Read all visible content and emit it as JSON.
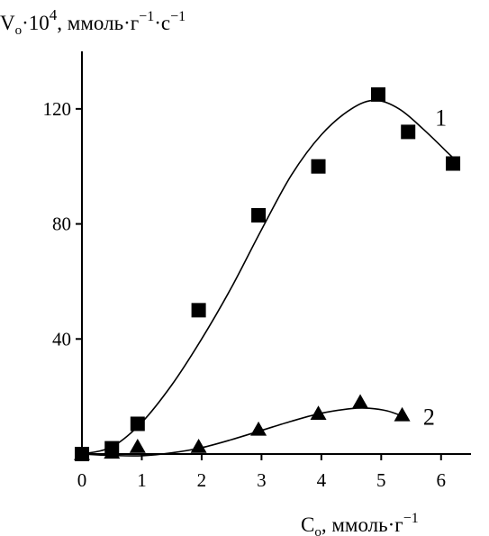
{
  "chart_data": {
    "type": "scatter",
    "ylabel": {
      "base": "V",
      "sub": "o",
      "mid": "·10",
      "exp": "4",
      "unit_a": ", ммоль·г",
      "unit_exp1": "−1",
      "unit_b": "·с",
      "unit_exp2": "−1"
    },
    "xlabel": {
      "base": "C",
      "sub": "o",
      "unit": ", ммоль·г",
      "unit_exp": "−1"
    },
    "xlim": [
      0,
      6.5
    ],
    "ylim": [
      0,
      140
    ],
    "x_ticks": [
      0,
      1,
      2,
      3,
      4,
      5,
      6
    ],
    "y_ticks": [
      40,
      80,
      120
    ],
    "x_tick_labels": [
      "0",
      "1",
      "2",
      "3",
      "4",
      "5",
      "6"
    ],
    "y_tick_labels": [
      "40",
      "80",
      "120"
    ],
    "grid": false,
    "series": [
      {
        "name": "1",
        "marker": "square",
        "points": [
          {
            "x": 0,
            "y": 0
          },
          {
            "x": 0.5,
            "y": 2
          },
          {
            "x": 0.93,
            "y": 10.5
          },
          {
            "x": 1.95,
            "y": 50
          },
          {
            "x": 2.95,
            "y": 83
          },
          {
            "x": 3.95,
            "y": 100
          },
          {
            "x": 4.95,
            "y": 125
          },
          {
            "x": 5.45,
            "y": 112
          },
          {
            "x": 6.2,
            "y": 101
          }
        ],
        "fit_curve": [
          {
            "x": 0,
            "y": 0
          },
          {
            "x": 0.5,
            "y": 2.5
          },
          {
            "x": 1.0,
            "y": 11
          },
          {
            "x": 1.5,
            "y": 24
          },
          {
            "x": 2.0,
            "y": 40
          },
          {
            "x": 2.5,
            "y": 58
          },
          {
            "x": 3.0,
            "y": 78
          },
          {
            "x": 3.5,
            "y": 97
          },
          {
            "x": 4.0,
            "y": 111
          },
          {
            "x": 4.5,
            "y": 120
          },
          {
            "x": 4.9,
            "y": 123
          },
          {
            "x": 5.3,
            "y": 120
          },
          {
            "x": 5.7,
            "y": 113
          },
          {
            "x": 6.1,
            "y": 105
          },
          {
            "x": 6.2,
            "y": 103
          }
        ],
        "label_at": {
          "x": 5.9,
          "y": 117
        }
      },
      {
        "name": "2",
        "marker": "triangle",
        "points": [
          {
            "x": 0,
            "y": 0
          },
          {
            "x": 0.5,
            "y": 0.5
          },
          {
            "x": 0.93,
            "y": 2.5
          },
          {
            "x": 1.95,
            "y": 2.5
          },
          {
            "x": 2.95,
            "y": 8.5
          },
          {
            "x": 3.95,
            "y": 14
          },
          {
            "x": 4.65,
            "y": 18
          },
          {
            "x": 5.35,
            "y": 13.5
          }
        ],
        "fit_curve": [
          {
            "x": 0,
            "y": 0
          },
          {
            "x": 0.5,
            "y": -0.5
          },
          {
            "x": 1.0,
            "y": -0.6
          },
          {
            "x": 1.5,
            "y": 0.4
          },
          {
            "x": 2.0,
            "y": 2.2
          },
          {
            "x": 2.5,
            "y": 5
          },
          {
            "x": 3.0,
            "y": 8.2
          },
          {
            "x": 3.5,
            "y": 11.4
          },
          {
            "x": 4.0,
            "y": 14.2
          },
          {
            "x": 4.5,
            "y": 15.8
          },
          {
            "x": 4.8,
            "y": 15.9
          },
          {
            "x": 5.1,
            "y": 15
          },
          {
            "x": 5.35,
            "y": 13.2
          }
        ],
        "label_at": {
          "x": 5.7,
          "y": 13
        }
      }
    ]
  }
}
